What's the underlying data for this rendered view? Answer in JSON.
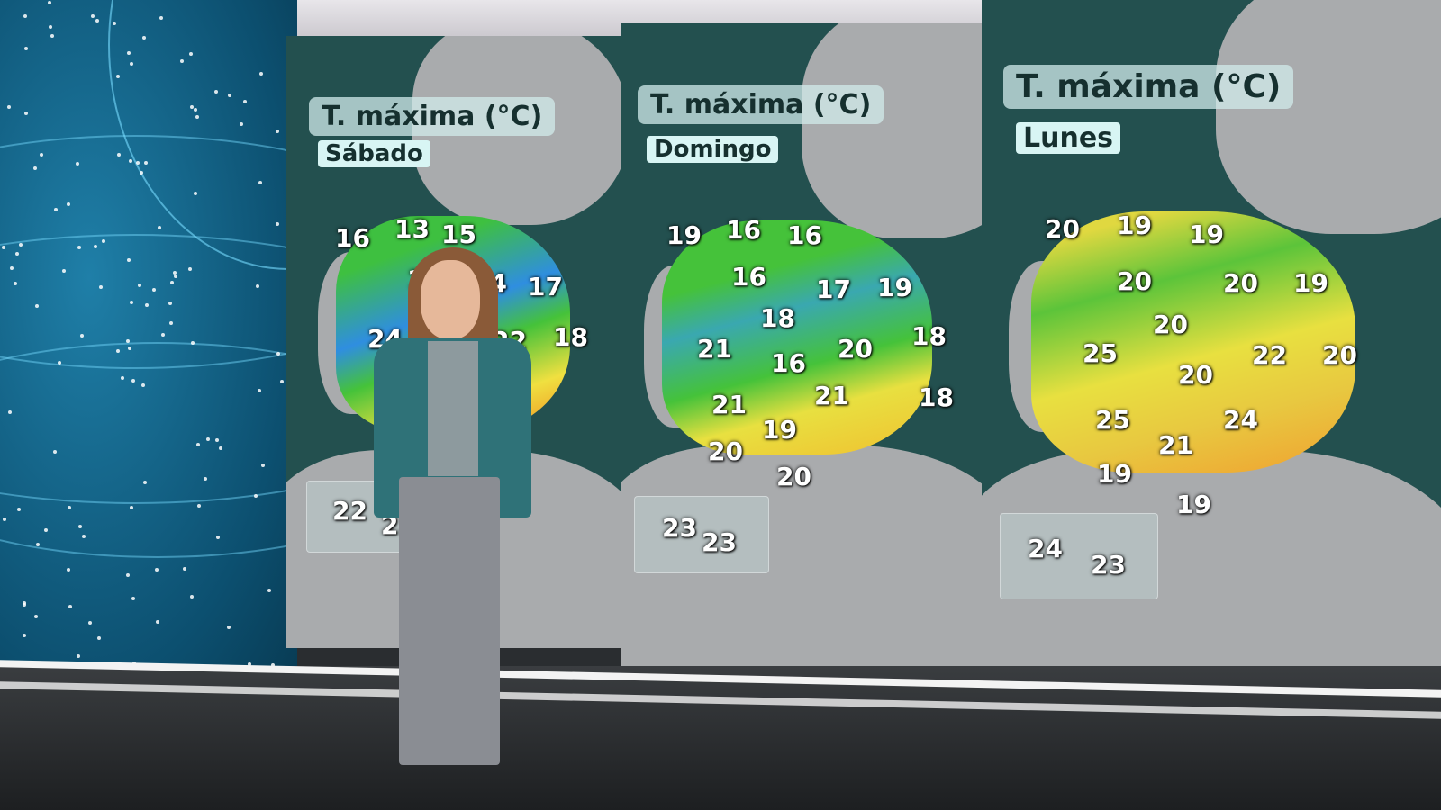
{
  "panels": [
    {
      "title": "T. máxima (°C)",
      "day": "Sábado",
      "values": [
        "16",
        "13",
        "15",
        "1",
        "14",
        "17",
        "24",
        "22",
        "18"
      ],
      "canarias": [
        "22",
        "23"
      ]
    },
    {
      "title": "T. máxima (°C)",
      "day": "Domingo",
      "values": [
        "19",
        "16",
        "16",
        "16",
        "17",
        "19",
        "18",
        "21",
        "18",
        "16",
        "20",
        "21",
        "21",
        "19",
        "20",
        "20",
        "18"
      ],
      "canarias": [
        "23",
        "23"
      ]
    },
    {
      "title": "T. máxima (°C)",
      "day": "Lunes",
      "values": [
        "20",
        "19",
        "19",
        "20",
        "20",
        "19",
        "20",
        "25",
        "20",
        "22",
        "20",
        "25",
        "24",
        "21",
        "19",
        "19"
      ],
      "canarias": [
        "24",
        "23"
      ]
    }
  ],
  "colors": {
    "sea": "#23504f",
    "land": "#a9abad",
    "cold": "#2a7bd6",
    "mild": "#45c23a",
    "warm": "#f0e040",
    "hot": "#f08a20",
    "left_wall": "#0c4f6f"
  }
}
